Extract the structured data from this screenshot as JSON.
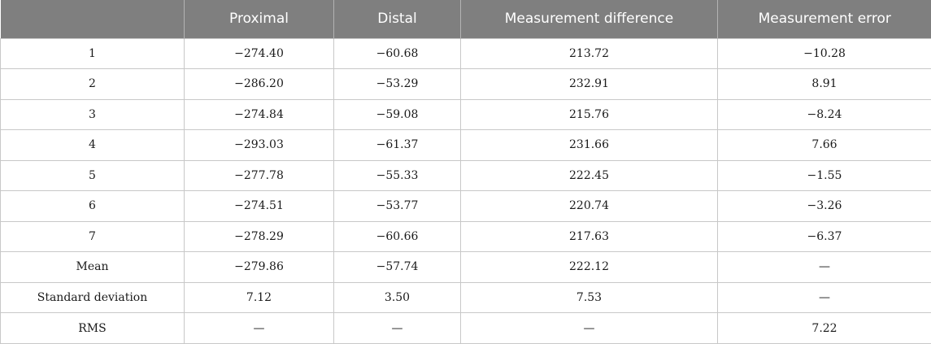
{
  "table": {
    "headers": [
      "",
      "Proximal",
      "Distal",
      "Measurement difference",
      "Measurement error"
    ],
    "rows": [
      [
        "1",
        "−274.40",
        "−60.68",
        "213.72",
        "−10.28"
      ],
      [
        "2",
        "−286.20",
        "−53.29",
        "232.91",
        "8.91"
      ],
      [
        "3",
        "−274.84",
        "−59.08",
        "215.76",
        "−8.24"
      ],
      [
        "4",
        "−293.03",
        "−61.37",
        "231.66",
        "7.66"
      ],
      [
        "5",
        "−277.78",
        "−55.33",
        "222.45",
        "−1.55"
      ],
      [
        "6",
        "−274.51",
        "−53.77",
        "220.74",
        "−3.26"
      ],
      [
        "7",
        "−278.29",
        "−60.66",
        "217.63",
        "−6.37"
      ],
      [
        "Mean",
        "−279.86",
        "−57.74",
        "222.12",
        "—"
      ],
      [
        "Standard deviation",
        "7.12",
        "3.50",
        "7.53",
        "—"
      ],
      [
        "RMS",
        "—",
        "—",
        "—",
        "7.22"
      ]
    ]
  },
  "colors": {
    "header_background": "#7f7f7f",
    "header_text": "#ffffff",
    "grid_line": "#c8c8c8"
  }
}
